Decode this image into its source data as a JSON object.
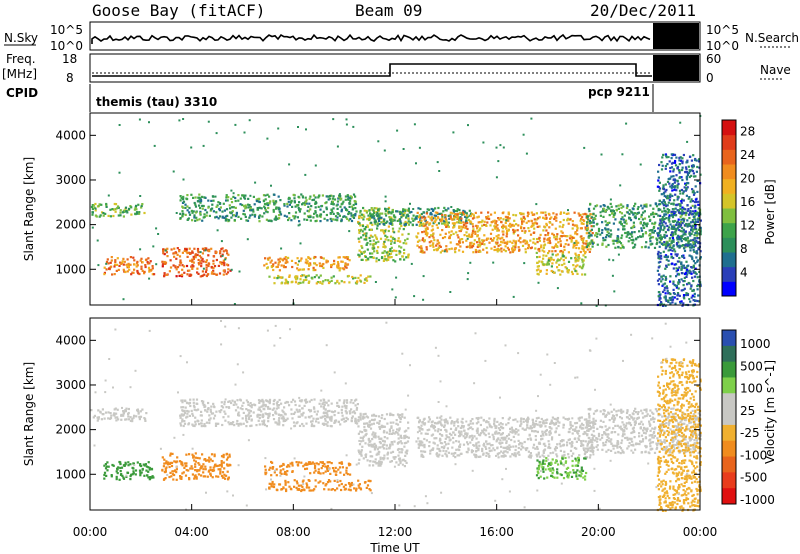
{
  "header": {
    "station": "Goose Bay (fitACF)",
    "beam": "Beam 09",
    "date": "20/Dec/2011"
  },
  "strip_panels": {
    "nsky_label": "N.Sky",
    "nsearch_label": "N.Search",
    "noise_ticks": [
      "10^5",
      "10^0"
    ],
    "noise_right_ticks": [
      "10^5",
      "10^0"
    ],
    "freq_label": "Freq.",
    "freq_unit": "[MHz]",
    "freq_ticks": [
      "18",
      "8"
    ],
    "nave_label": "Nave",
    "nave_ticks": [
      "60",
      "0"
    ],
    "cpid_label": "CPID",
    "cpid_modes": [
      {
        "name": "themis (tau) 3310",
        "start_hour": 0,
        "end_hour": 12
      },
      {
        "name": "pcp 9211",
        "start_hour": 12,
        "end_hour": 22
      }
    ]
  },
  "chart_data": [
    {
      "type": "heatmap",
      "name": "power",
      "ylabel": "Slant Range [km]",
      "xlabel": "Time UT",
      "xlim": [
        0,
        24
      ],
      "ylim": [
        200,
        4500
      ],
      "x_ticks": [
        "00:00",
        "04:00",
        "08:00",
        "12:00",
        "16:00",
        "20:00",
        "00:00"
      ],
      "y_ticks": [
        1000,
        2000,
        3000,
        4000
      ],
      "colorbar": {
        "label": "Power [dB]",
        "ticks": [
          28,
          24,
          20,
          16,
          12,
          8,
          4
        ],
        "range": [
          0,
          30
        ],
        "colors": [
          "#0000ff",
          "#2a3fb8",
          "#1f6f8f",
          "#2c8f5a",
          "#3da34a",
          "#7fbf3f",
          "#d4c428",
          "#f0b020",
          "#f08c1e",
          "#e8641c",
          "#e03c1a",
          "#d41010"
        ]
      },
      "regions": [
        {
          "t0": 0.0,
          "t1": 2.2,
          "r0": 2200,
          "r1": 2500,
          "level": 12
        },
        {
          "t0": 0.5,
          "t1": 2.5,
          "r0": 900,
          "r1": 1300,
          "level": 22
        },
        {
          "t0": 2.8,
          "t1": 5.5,
          "r0": 850,
          "r1": 1500,
          "level": 24
        },
        {
          "t0": 3.5,
          "t1": 10.5,
          "r0": 2100,
          "r1": 2700,
          "level": 10
        },
        {
          "t0": 6.8,
          "t1": 10.2,
          "r0": 1000,
          "r1": 1300,
          "level": 20
        },
        {
          "t0": 7.0,
          "t1": 11.0,
          "r0": 700,
          "r1": 900,
          "level": 16
        },
        {
          "t0": 10.5,
          "t1": 12.5,
          "r0": 1200,
          "r1": 2400,
          "level": 14
        },
        {
          "t0": 11.0,
          "t1": 15.0,
          "r0": 2000,
          "r1": 2400,
          "level": 9
        },
        {
          "t0": 12.8,
          "t1": 19.8,
          "r0": 1400,
          "r1": 2300,
          "level": 20
        },
        {
          "t0": 17.5,
          "t1": 19.5,
          "r0": 900,
          "r1": 1400,
          "level": 16
        },
        {
          "t0": 19.5,
          "t1": 24.0,
          "r0": 1500,
          "r1": 2500,
          "level": 10
        },
        {
          "t0": 22.3,
          "t1": 24.0,
          "r0": 200,
          "r1": 3600,
          "level": 6
        }
      ]
    },
    {
      "type": "heatmap",
      "name": "velocity",
      "ylabel": "Slant Range [km]",
      "xlabel": "Time UT",
      "xlim": [
        0,
        24
      ],
      "ylim": [
        200,
        4500
      ],
      "x_ticks": [
        "00:00",
        "04:00",
        "08:00",
        "12:00",
        "16:00",
        "20:00",
        "00:00"
      ],
      "y_ticks": [
        1000,
        2000,
        3000,
        4000
      ],
      "colorbar": {
        "label": "Velocity [m s^-1]",
        "ticks": [
          "1000",
          "500",
          "100",
          "25",
          "-25",
          "-100",
          "-500",
          "-1000"
        ],
        "colors": [
          "#2a4fb0",
          "#2f6f5a",
          "#3a9a3a",
          "#7ed04a",
          "#c8c8c4",
          "#c8c8c4",
          "#f0b030",
          "#f08c1e",
          "#e8641c",
          "#e83c1c",
          "#e01010"
        ]
      },
      "regions": [
        {
          "t0": 0.0,
          "t1": 2.2,
          "r0": 2200,
          "r1": 2500,
          "level": 0
        },
        {
          "t0": 0.5,
          "t1": 2.5,
          "r0": 900,
          "r1": 1300,
          "level": 150
        },
        {
          "t0": 2.8,
          "t1": 5.5,
          "r0": 900,
          "r1": 1500,
          "level": -150
        },
        {
          "t0": 3.5,
          "t1": 10.5,
          "r0": 2100,
          "r1": 2700,
          "level": 0
        },
        {
          "t0": 6.8,
          "t1": 10.2,
          "r0": 1000,
          "r1": 1300,
          "level": -200
        },
        {
          "t0": 7.0,
          "t1": 11.0,
          "r0": 650,
          "r1": 900,
          "level": -250
        },
        {
          "t0": 10.5,
          "t1": 12.5,
          "r0": 1200,
          "r1": 2400,
          "level": 0
        },
        {
          "t0": 12.8,
          "t1": 19.8,
          "r0": 1400,
          "r1": 2300,
          "level": 0
        },
        {
          "t0": 17.5,
          "t1": 19.5,
          "r0": 900,
          "r1": 1400,
          "level": 100
        },
        {
          "t0": 19.5,
          "t1": 24.0,
          "r0": 1500,
          "r1": 2500,
          "level": 0
        },
        {
          "t0": 22.3,
          "t1": 24.0,
          "r0": 200,
          "r1": 3600,
          "level": -60
        }
      ]
    }
  ]
}
